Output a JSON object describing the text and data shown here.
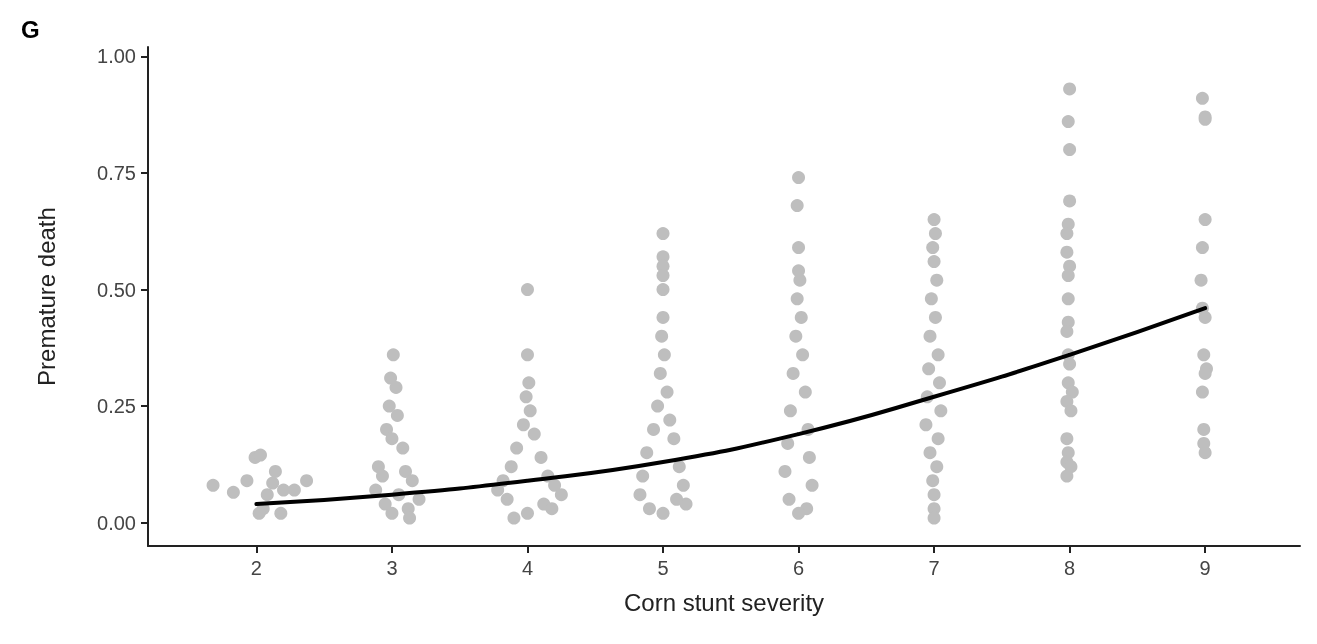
{
  "chart_data": {
    "type": "scatter",
    "title": "G",
    "xlabel": "Corn stunt severity",
    "ylabel": "Premature death",
    "xlim": [
      1.2,
      9.7
    ],
    "xticks": [
      2,
      3,
      4,
      5,
      6,
      7,
      8,
      9
    ],
    "ylim": [
      -0.05,
      1.02
    ],
    "yticks": [
      {
        "value": 0,
        "label": "0.00"
      },
      {
        "value": 0.25,
        "label": "0.25"
      },
      {
        "value": 0.5,
        "label": "0.50"
      },
      {
        "value": 0.75,
        "label": "0.75"
      },
      {
        "value": 1,
        "label": "1.00"
      }
    ],
    "grid": false,
    "marker": "circle",
    "series": [
      {
        "color": "#bebebe",
        "x": [
          1.68,
          1.83,
          1.93,
          1.99,
          2.03,
          2.08,
          2.14,
          2.12,
          2.2,
          2.28,
          2.37,
          2.05,
          2.18,
          2.02,
          3.01,
          2.99,
          3.03,
          2.98,
          3.04,
          2.96,
          3.0,
          3.08,
          2.9,
          3.1,
          2.93,
          3.15,
          2.88,
          3.05,
          3.2,
          2.95,
          3.12,
          3.0,
          3.13,
          4.0,
          4.0,
          4.01,
          3.99,
          4.02,
          3.97,
          4.05,
          3.92,
          4.1,
          3.88,
          4.15,
          3.82,
          4.2,
          3.78,
          4.25,
          3.85,
          4.12,
          4.0,
          3.9,
          4.18,
          5.0,
          5.0,
          5.0,
          5.0,
          5.0,
          5.0,
          4.99,
          5.01,
          4.98,
          5.03,
          4.96,
          5.05,
          4.93,
          5.08,
          4.88,
          5.12,
          4.85,
          5.15,
          4.83,
          5.17,
          5.0,
          4.9,
          5.1,
          6.0,
          5.99,
          6.0,
          6.0,
          6.01,
          5.99,
          6.02,
          5.98,
          6.03,
          5.96,
          6.05,
          5.94,
          6.07,
          5.92,
          6.08,
          5.9,
          6.1,
          5.93,
          6.06,
          6.0,
          7.0,
          7.01,
          6.99,
          7.0,
          7.02,
          6.98,
          7.01,
          6.97,
          7.03,
          6.96,
          7.04,
          6.95,
          7.05,
          6.94,
          7.03,
          6.97,
          7.02,
          6.99,
          7.0,
          7.0,
          7.0,
          8.0,
          7.99,
          8.0,
          8.0,
          7.99,
          7.98,
          7.98,
          8.0,
          7.99,
          7.99,
          7.99,
          7.98,
          7.99,
          8.0,
          7.99,
          8.02,
          7.98,
          8.01,
          7.98,
          7.99,
          7.98,
          8.01,
          7.98,
          8.98,
          9.0,
          9.0,
          9.0,
          8.98,
          8.97,
          8.98,
          9.0,
          8.99,
          9.01,
          9.0,
          8.98,
          8.99,
          8.99,
          9.0
        ],
        "values": [
          0.08,
          0.065,
          0.09,
          0.14,
          0.145,
          0.06,
          0.11,
          0.085,
          0.07,
          0.07,
          0.09,
          0.03,
          0.02,
          0.02,
          0.36,
          0.31,
          0.29,
          0.25,
          0.23,
          0.2,
          0.18,
          0.16,
          0.12,
          0.11,
          0.1,
          0.09,
          0.07,
          0.06,
          0.05,
          0.04,
          0.03,
          0.02,
          0.01,
          0.5,
          0.36,
          0.3,
          0.27,
          0.24,
          0.21,
          0.19,
          0.16,
          0.14,
          0.12,
          0.1,
          0.09,
          0.08,
          0.07,
          0.06,
          0.05,
          0.04,
          0.02,
          0.01,
          0.03,
          0.62,
          0.57,
          0.55,
          0.53,
          0.5,
          0.44,
          0.4,
          0.36,
          0.32,
          0.28,
          0.25,
          0.22,
          0.2,
          0.18,
          0.15,
          0.12,
          0.1,
          0.08,
          0.06,
          0.04,
          0.02,
          0.03,
          0.05,
          0.74,
          0.68,
          0.59,
          0.54,
          0.52,
          0.48,
          0.44,
          0.4,
          0.36,
          0.32,
          0.28,
          0.24,
          0.2,
          0.17,
          0.14,
          0.11,
          0.08,
          0.05,
          0.03,
          0.02,
          0.65,
          0.62,
          0.59,
          0.56,
          0.52,
          0.48,
          0.44,
          0.4,
          0.36,
          0.33,
          0.3,
          0.27,
          0.24,
          0.21,
          0.18,
          0.15,
          0.12,
          0.09,
          0.06,
          0.03,
          0.01,
          0.93,
          0.86,
          0.8,
          0.69,
          0.64,
          0.62,
          0.58,
          0.55,
          0.53,
          0.48,
          0.43,
          0.41,
          0.36,
          0.34,
          0.3,
          0.28,
          0.26,
          0.24,
          0.18,
          0.15,
          0.13,
          0.12,
          0.1,
          0.91,
          0.87,
          0.865,
          0.65,
          0.59,
          0.52,
          0.46,
          0.44,
          0.36,
          0.33,
          0.32,
          0.28,
          0.2,
          0.17,
          0.15
        ]
      },
      {
        "type": "line",
        "color": "#000000",
        "marker": "none",
        "line_style": "solid",
        "x": [
          2,
          3,
          4,
          5,
          6,
          7,
          8,
          9
        ],
        "values": [
          0.04,
          0.06,
          0.09,
          0.13,
          0.19,
          0.27,
          0.36,
          0.46
        ]
      }
    ]
  }
}
